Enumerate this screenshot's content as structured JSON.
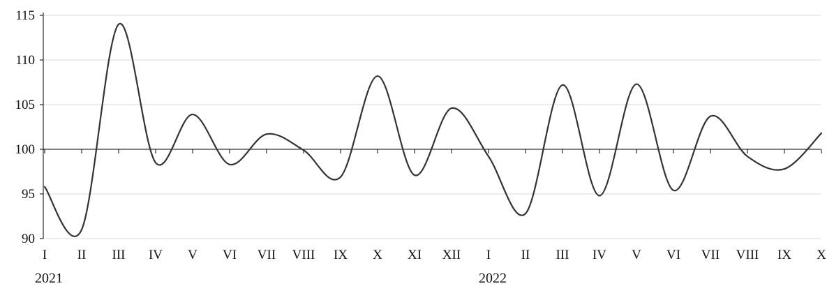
{
  "chart_data": {
    "type": "line",
    "title": "",
    "xlabel": "",
    "ylabel": "",
    "ylim": [
      90,
      115
    ],
    "yticks": [
      90,
      95,
      100,
      105,
      110,
      115
    ],
    "grid": "horizontal",
    "reference_line": 100,
    "smooth": true,
    "line_color": "#333333",
    "grid_color": "#d9d9d9",
    "axis_color": "#000000",
    "categories": [
      "I",
      "II",
      "III",
      "IV",
      "V",
      "VI",
      "VII",
      "VIII",
      "IX",
      "X",
      "XI",
      "XII",
      "I",
      "II",
      "III",
      "IV",
      "V",
      "VI",
      "VII",
      "VIII",
      "IX",
      "X"
    ],
    "year_labels": [
      {
        "label": "2021",
        "index": 0
      },
      {
        "label": "2022",
        "index": 12
      }
    ],
    "series": [
      {
        "values": [
          95.8,
          91.0,
          114.0,
          98.5,
          103.9,
          98.3,
          101.7,
          99.9,
          96.9,
          108.2,
          97.1,
          104.6,
          99.2,
          92.8,
          107.2,
          94.8,
          107.3,
          95.4,
          103.7,
          99.2,
          97.8,
          101.8
        ]
      }
    ]
  }
}
